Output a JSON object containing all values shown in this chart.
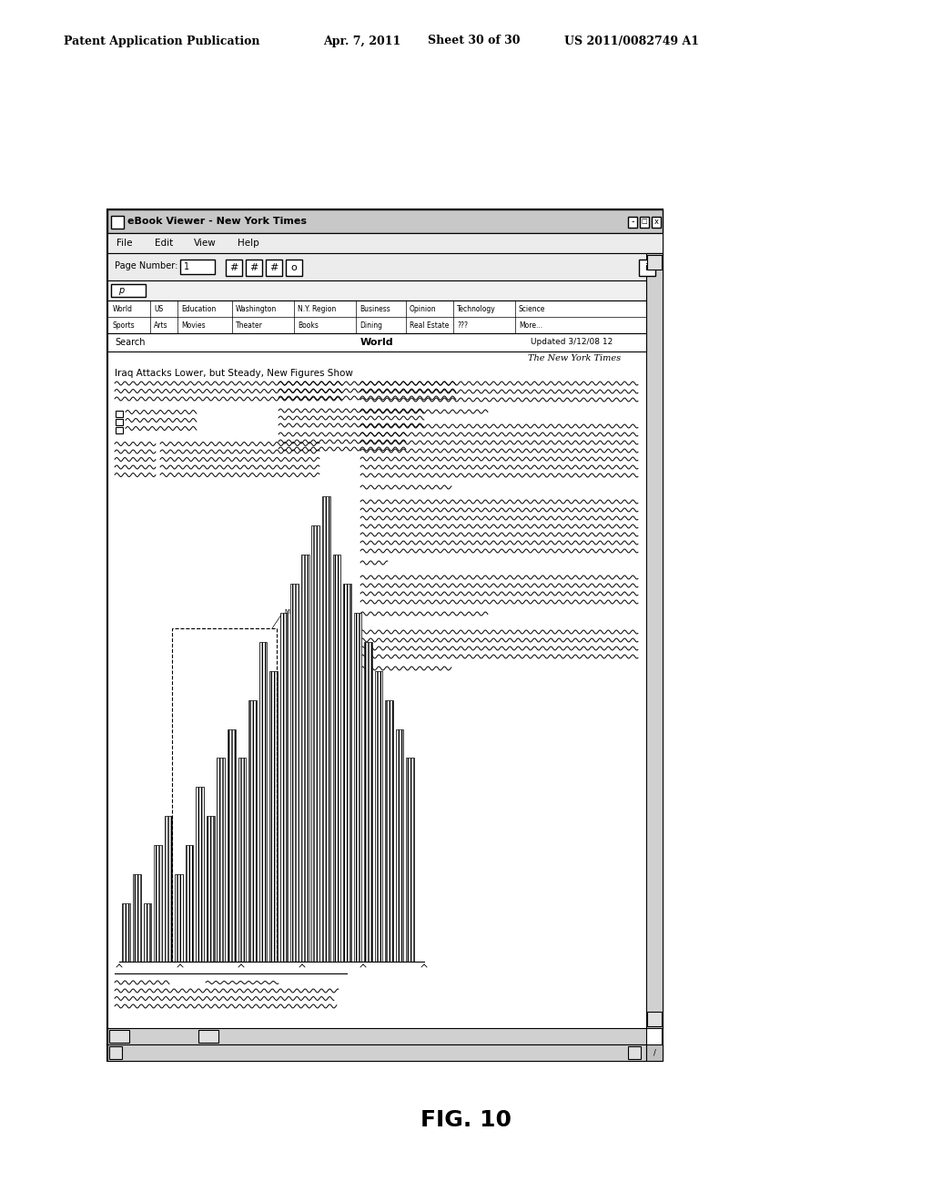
{
  "title_header": "Patent Application Publication",
  "date_header": "Apr. 7, 2011",
  "sheet_header": "Sheet 30 of 30",
  "patent_header": "US 2011/0082749 A1",
  "fig_label": "FIG. 10",
  "window_title": "eBook Viewer - New York Times",
  "menu_items": [
    "File",
    "Edit",
    "View",
    "Help"
  ],
  "page_number_label": "Page Number:",
  "page_number_value": "1",
  "nav_row1": [
    "World",
    "US",
    "Education",
    "Washington",
    "N.Y. Region",
    "Business",
    "Opinion",
    "Technology",
    "Science"
  ],
  "nav_row2": [
    "Sports",
    "Arts",
    "Movies",
    "Theater",
    "Books",
    "Dining",
    "Real Estate",
    "???",
    "More..."
  ],
  "search_label": "Search",
  "world_label": "World",
  "updated_label": "Updated 3/12/08 12",
  "nyt_logo": "The New York Times",
  "article_headline": "Iraq Attacks Lower, but Steady, New Figures Show",
  "bg_color": "#ffffff",
  "nav_widths": [
    45,
    30,
    60,
    68,
    68,
    55,
    52,
    68,
    50
  ],
  "bar_heights": [
    2,
    3,
    2,
    4,
    5,
    3,
    4,
    6,
    5,
    7,
    8,
    7,
    9,
    11,
    10,
    12,
    13,
    14,
    15,
    16,
    14,
    13,
    12,
    11,
    10,
    9,
    8,
    7
  ]
}
